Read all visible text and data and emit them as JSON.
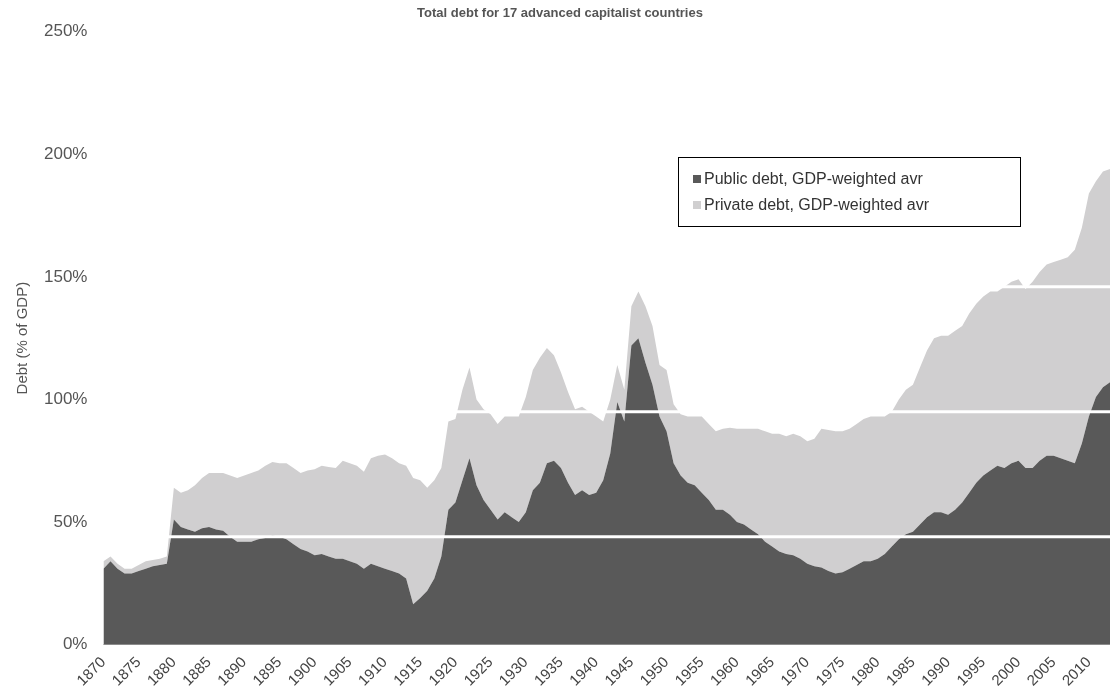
{
  "chart_data": {
    "type": "area",
    "title": "Total debt for 17 advanced capitalist countries",
    "ylabel": "Debt (% of GDP)",
    "stacked": true,
    "legend": "top right",
    "grid": false,
    "x": [
      1870,
      1871,
      1872,
      1873,
      1874,
      1875,
      1876,
      1877,
      1878,
      1879,
      1880,
      1881,
      1882,
      1883,
      1884,
      1885,
      1886,
      1887,
      1888,
      1889,
      1890,
      1891,
      1892,
      1893,
      1894,
      1895,
      1896,
      1897,
      1898,
      1899,
      1900,
      1901,
      1902,
      1903,
      1904,
      1905,
      1906,
      1907,
      1908,
      1909,
      1910,
      1911,
      1912,
      1913,
      1914,
      1915,
      1916,
      1917,
      1918,
      1919,
      1920,
      1921,
      1922,
      1923,
      1924,
      1925,
      1926,
      1927,
      1928,
      1929,
      1930,
      1931,
      1932,
      1933,
      1934,
      1935,
      1936,
      1937,
      1938,
      1939,
      1940,
      1941,
      1942,
      1943,
      1944,
      1945,
      1946,
      1947,
      1948,
      1949,
      1950,
      1951,
      1952,
      1953,
      1954,
      1955,
      1956,
      1957,
      1958,
      1959,
      1960,
      1961,
      1962,
      1963,
      1964,
      1965,
      1966,
      1967,
      1968,
      1969,
      1970,
      1971,
      1972,
      1973,
      1974,
      1975,
      1976,
      1977,
      1978,
      1979,
      1980,
      1981,
      1982,
      1983,
      1984,
      1985,
      1986,
      1987,
      1988,
      1989,
      1990,
      1991,
      1992,
      1993,
      1994,
      1995,
      1996,
      1997,
      1998,
      1999,
      2000,
      2001,
      2002,
      2003,
      2004,
      2005,
      2006,
      2007,
      2008,
      2009,
      2010,
      2011,
      2012,
      2013
    ],
    "series": [
      {
        "name": "Public debt, GDP-weighted avr",
        "color": "#595959",
        "values": [
          31,
          34,
          31,
          29,
          29,
          30,
          31,
          32,
          32.5,
          33,
          51,
          48,
          47,
          46,
          47.5,
          48,
          47,
          46.5,
          44,
          42,
          42,
          42,
          43,
          43.5,
          44.5,
          44,
          43,
          41,
          39,
          38,
          36.5,
          37,
          36,
          35,
          35,
          34,
          33,
          31,
          33,
          32,
          31,
          30,
          29,
          27,
          16.5,
          19,
          22,
          27,
          36,
          55,
          58,
          67,
          76,
          65,
          59,
          55,
          51,
          54,
          52,
          50,
          54,
          63,
          66,
          74,
          75,
          72,
          66,
          61,
          63,
          61,
          62,
          67,
          78,
          99,
          91,
          122,
          125,
          115,
          106,
          93,
          87,
          74,
          69,
          66,
          65,
          62,
          59,
          55,
          55,
          53,
          50,
          49,
          47,
          45,
          42,
          40,
          38,
          37,
          36.5,
          35,
          33,
          32,
          31.5,
          30,
          29,
          29.5,
          31,
          32.5,
          34,
          34,
          35,
          37,
          40,
          43,
          45,
          46,
          49,
          52,
          54,
          54,
          53,
          55,
          58,
          62,
          66,
          69,
          71,
          73,
          72,
          74,
          75,
          72,
          72,
          75,
          77,
          77,
          76,
          75,
          74,
          82,
          93,
          101,
          105,
          107
        ]
      },
      {
        "name": "Private debt, GDP-weighted avr",
        "color": "#d0cfd0",
        "values": [
          3,
          2,
          2,
          2,
          2,
          2.5,
          3,
          2.5,
          2.5,
          3,
          13,
          14,
          16,
          19,
          20.5,
          22,
          23,
          23.5,
          25,
          26,
          27,
          28,
          28,
          29.5,
          30,
          30,
          31,
          31,
          31,
          33,
          35,
          36,
          36.5,
          37,
          40,
          40,
          40,
          39.5,
          43,
          45,
          46.5,
          46,
          45,
          46,
          51.5,
          48,
          42,
          40,
          36,
          36,
          34,
          37,
          37,
          35,
          37,
          39,
          39,
          39,
          41,
          43,
          47,
          49,
          51,
          47,
          43,
          39,
          37,
          35,
          34,
          34,
          31,
          24,
          22,
          15,
          13,
          16,
          19,
          23,
          24,
          21,
          25,
          24,
          25,
          27,
          28,
          31,
          31,
          32,
          33,
          35.5,
          38,
          39,
          41,
          43,
          45,
          46,
          48,
          48,
          49.5,
          50,
          50,
          52,
          56.5,
          57.5,
          58,
          57.5,
          57,
          57.5,
          58,
          59,
          58,
          56,
          55,
          57,
          59,
          60,
          64,
          68,
          71,
          72,
          73,
          73,
          72,
          73,
          73,
          73,
          73,
          71,
          74,
          74,
          74,
          73,
          76,
          77,
          78,
          79,
          81,
          83,
          87,
          88,
          91,
          88,
          88,
          87
        ]
      }
    ],
    "xlim": [
      1870,
      2013
    ],
    "xticks": [
      1870,
      1875,
      1880,
      1885,
      1890,
      1895,
      1900,
      1905,
      1910,
      1915,
      1920,
      1925,
      1930,
      1935,
      1940,
      1945,
      1950,
      1955,
      1960,
      1965,
      1970,
      1975,
      1980,
      1985,
      1990,
      1995,
      2000,
      2005,
      2010
    ],
    "ylim": [
      0,
      250
    ],
    "yticks": [
      {
        "value": 0,
        "label": "0%"
      },
      {
        "value": 50,
        "label": "50%"
      },
      {
        "value": 100,
        "label": "100%"
      },
      {
        "value": 150,
        "label": "150%"
      },
      {
        "value": 200,
        "label": "200%"
      },
      {
        "value": 250,
        "label": "250%"
      }
    ],
    "ref_lines": [
      {
        "axis": "y",
        "value": 44,
        "color": "#ffffff"
      },
      {
        "axis": "y",
        "value": 95,
        "color": "#ffffff"
      },
      {
        "axis": "y",
        "value": 146,
        "color": "#ffffff"
      }
    ]
  }
}
